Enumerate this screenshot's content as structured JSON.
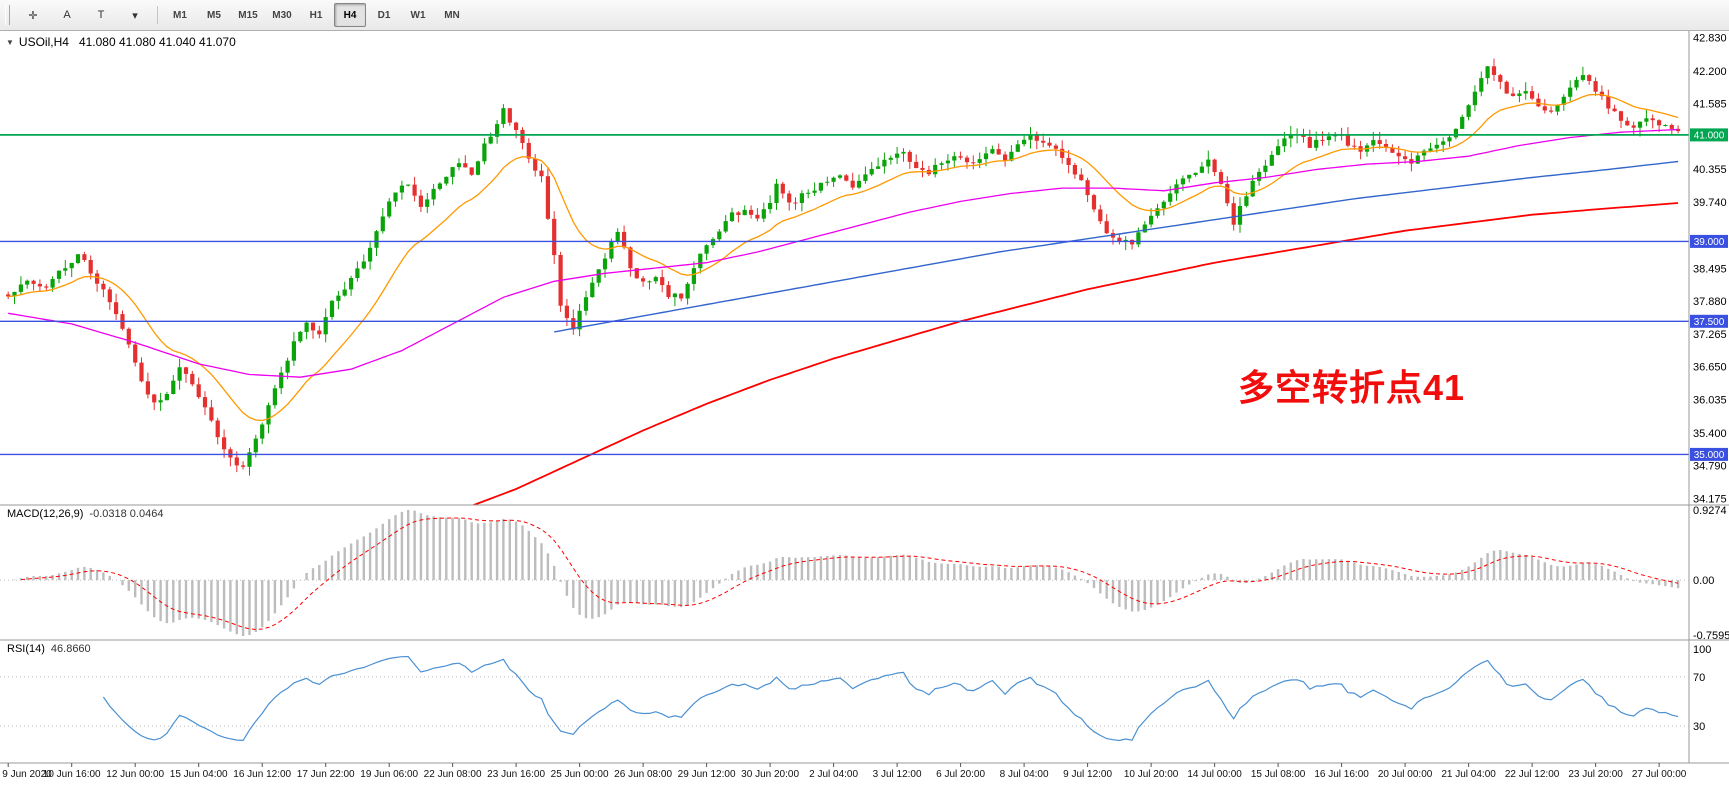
{
  "toolbar": {
    "left_buttons": [
      {
        "name": "cursor-tool-icon",
        "glyph": "✛"
      },
      {
        "name": "text-annotation-tool",
        "glyph": "A"
      },
      {
        "name": "text-label-tool",
        "glyph": "T"
      },
      {
        "name": "drawing-tools-dropdown-icon",
        "glyph": "▾"
      }
    ],
    "timeframes": [
      "M1",
      "M5",
      "M15",
      "M30",
      "H1",
      "H4",
      "D1",
      "W1",
      "MN"
    ],
    "active_timeframe": "H4"
  },
  "chart": {
    "collapse_glyph": "▼",
    "symbol_title": "USOil,H4",
    "ohlc_text": "41.080 41.080 41.040 41.070",
    "annotation": {
      "text": "多空转折点41"
    },
    "y_axis_labels": [
      "42.830",
      "42.200",
      "41.585",
      "40.355",
      "39.740",
      "38.495",
      "37.880",
      "37.265",
      "36.650",
      "36.035",
      "35.400",
      "34.790",
      "34.175"
    ],
    "price_tags": [
      {
        "label": "41.000",
        "price": 41.0,
        "color": "#00a651"
      },
      {
        "label": "39.000",
        "price": 39.0,
        "color": "#3a50e0"
      },
      {
        "label": "37.500",
        "price": 37.5,
        "color": "#3a50e0"
      },
      {
        "label": "35.000",
        "price": 35.0,
        "color": "#3a50e0"
      }
    ]
  },
  "macd": {
    "title": "MACD(12,26,9)",
    "values": "-0.0318 0.0464",
    "axis_labels": [
      "0.9274",
      "0.00",
      "-0.7595"
    ]
  },
  "rsi": {
    "title": "RSI(14)",
    "value": "46.8660",
    "axis_labels": [
      "100",
      "70",
      "30"
    ]
  },
  "colors": {
    "bull": "#0aa30a",
    "bear": "#e53030",
    "ma_orange": "#ff9900",
    "ma_magenta": "#ee00ee",
    "ma_blue": "#3366cc",
    "ma_red": "#ff0000",
    "hline_green": "#00a651",
    "hline_blue": "#3a50e0",
    "macd_hist": "#bdbdbd",
    "macd_signal": "#ff0000",
    "rsi_line": "#4a90d2",
    "annotation": "#f20d0d",
    "axis_text": "#000000",
    "grid_dotted": "#bbbbbb",
    "divider": "#9a9a9a"
  },
  "chart_data": {
    "type": "candlestick",
    "symbol": "USOil",
    "timeframe": "H4",
    "current_ohlc": {
      "open": 41.08,
      "high": 41.08,
      "low": 41.04,
      "close": 41.07
    },
    "n_candles": 264,
    "price_axis": {
      "ylim": [
        34.05,
        42.95
      ]
    },
    "horizontal_lines": [
      {
        "price": 41.0,
        "color": "#00a651"
      },
      {
        "price": 39.0,
        "color": "#3a50e0"
      },
      {
        "price": 37.5,
        "color": "#3a50e0"
      },
      {
        "price": 35.0,
        "color": "#3a50e0"
      }
    ],
    "close_path": [
      [
        0,
        37.95
      ],
      [
        3,
        38.25
      ],
      [
        6,
        38.1
      ],
      [
        9,
        38.55
      ],
      [
        11,
        38.75
      ],
      [
        13,
        38.45
      ],
      [
        16,
        37.85
      ],
      [
        19,
        37.1
      ],
      [
        21,
        36.35
      ],
      [
        23,
        35.95
      ],
      [
        25,
        36.1
      ],
      [
        27,
        36.65
      ],
      [
        29,
        36.35
      ],
      [
        31,
        35.85
      ],
      [
        33,
        35.35
      ],
      [
        35,
        34.95
      ],
      [
        37,
        34.72
      ],
      [
        39,
        35.3
      ],
      [
        41,
        35.9
      ],
      [
        43,
        36.5
      ],
      [
        45,
        37.1
      ],
      [
        47,
        37.45
      ],
      [
        49,
        37.3
      ],
      [
        51,
        37.85
      ],
      [
        53,
        38.15
      ],
      [
        55,
        38.45
      ],
      [
        57,
        38.9
      ],
      [
        59,
        39.5
      ],
      [
        61,
        39.95
      ],
      [
        63,
        40.1
      ],
      [
        65,
        39.7
      ],
      [
        67,
        39.95
      ],
      [
        69,
        40.2
      ],
      [
        71,
        40.5
      ],
      [
        73,
        40.3
      ],
      [
        75,
        40.8
      ],
      [
        77,
        41.2
      ],
      [
        78,
        41.45
      ],
      [
        80,
        41.1
      ],
      [
        82,
        40.5
      ],
      [
        84,
        40.25
      ],
      [
        86,
        38.7
      ],
      [
        87,
        37.75
      ],
      [
        89,
        37.4
      ],
      [
        91,
        38.0
      ],
      [
        93,
        38.45
      ],
      [
        95,
        39.0
      ],
      [
        96,
        39.2
      ],
      [
        98,
        38.5
      ],
      [
        100,
        38.2
      ],
      [
        102,
        38.35
      ],
      [
        104,
        38.0
      ],
      [
        106,
        37.95
      ],
      [
        108,
        38.55
      ],
      [
        110,
        38.9
      ],
      [
        112,
        39.2
      ],
      [
        114,
        39.5
      ],
      [
        116,
        39.55
      ],
      [
        118,
        39.4
      ],
      [
        120,
        39.75
      ],
      [
        121,
        40.05
      ],
      [
        123,
        39.7
      ],
      [
        125,
        39.85
      ],
      [
        127,
        40.0
      ],
      [
        129,
        40.1
      ],
      [
        131,
        40.25
      ],
      [
        133,
        40.05
      ],
      [
        135,
        40.3
      ],
      [
        137,
        40.45
      ],
      [
        139,
        40.55
      ],
      [
        141,
        40.65
      ],
      [
        143,
        40.4
      ],
      [
        145,
        40.3
      ],
      [
        147,
        40.5
      ],
      [
        149,
        40.6
      ],
      [
        151,
        40.45
      ],
      [
        153,
        40.55
      ],
      [
        155,
        40.7
      ],
      [
        157,
        40.5
      ],
      [
        159,
        40.8
      ],
      [
        161,
        41.0
      ],
      [
        163,
        40.85
      ],
      [
        165,
        40.7
      ],
      [
        167,
        40.4
      ],
      [
        169,
        40.15
      ],
      [
        171,
        39.6
      ],
      [
        173,
        39.15
      ],
      [
        175,
        39.0
      ],
      [
        177,
        38.95
      ],
      [
        179,
        39.3
      ],
      [
        181,
        39.65
      ],
      [
        183,
        39.9
      ],
      [
        185,
        40.15
      ],
      [
        187,
        40.3
      ],
      [
        189,
        40.5
      ],
      [
        191,
        40.1
      ],
      [
        193,
        39.35
      ],
      [
        195,
        39.9
      ],
      [
        197,
        40.3
      ],
      [
        199,
        40.6
      ],
      [
        201,
        40.9
      ],
      [
        203,
        41.05
      ],
      [
        205,
        40.8
      ],
      [
        207,
        40.95
      ],
      [
        209,
        41.05
      ],
      [
        211,
        40.85
      ],
      [
        213,
        40.7
      ],
      [
        215,
        40.9
      ],
      [
        217,
        40.75
      ],
      [
        219,
        40.6
      ],
      [
        221,
        40.5
      ],
      [
        223,
        40.65
      ],
      [
        225,
        40.8
      ],
      [
        227,
        41.0
      ],
      [
        229,
        41.3
      ],
      [
        231,
        41.85
      ],
      [
        233,
        42.25
      ],
      [
        235,
        41.95
      ],
      [
        237,
        41.7
      ],
      [
        239,
        41.85
      ],
      [
        241,
        41.55
      ],
      [
        243,
        41.45
      ],
      [
        245,
        41.7
      ],
      [
        247,
        42.0
      ],
      [
        248,
        42.15
      ],
      [
        250,
        41.85
      ],
      [
        252,
        41.55
      ],
      [
        254,
        41.3
      ],
      [
        256,
        41.15
      ],
      [
        258,
        41.3
      ],
      [
        260,
        41.2
      ],
      [
        263,
        41.07
      ]
    ],
    "moving_averages": {
      "orange_ema_period": 16,
      "magenta_path": [
        [
          0,
          37.65
        ],
        [
          10,
          37.45
        ],
        [
          20,
          37.1
        ],
        [
          30,
          36.7
        ],
        [
          38,
          36.5
        ],
        [
          46,
          36.45
        ],
        [
          54,
          36.6
        ],
        [
          62,
          36.95
        ],
        [
          70,
          37.45
        ],
        [
          78,
          37.95
        ],
        [
          86,
          38.25
        ],
        [
          94,
          38.4
        ],
        [
          102,
          38.5
        ],
        [
          110,
          38.6
        ],
        [
          118,
          38.8
        ],
        [
          126,
          39.05
        ],
        [
          134,
          39.3
        ],
        [
          142,
          39.55
        ],
        [
          150,
          39.75
        ],
        [
          158,
          39.9
        ],
        [
          166,
          40.0
        ],
        [
          174,
          40.0
        ],
        [
          182,
          39.95
        ],
        [
          190,
          40.1
        ],
        [
          198,
          40.2
        ],
        [
          206,
          40.35
        ],
        [
          214,
          40.45
        ],
        [
          222,
          40.5
        ],
        [
          230,
          40.6
        ],
        [
          238,
          40.8
        ],
        [
          246,
          40.95
        ],
        [
          254,
          41.05
        ],
        [
          263,
          41.1
        ]
      ],
      "blue_path": [
        [
          86,
          37.3
        ],
        [
          100,
          37.6
        ],
        [
          114,
          37.9
        ],
        [
          128,
          38.2
        ],
        [
          142,
          38.5
        ],
        [
          156,
          38.8
        ],
        [
          170,
          39.05
        ],
        [
          184,
          39.3
        ],
        [
          198,
          39.55
        ],
        [
          212,
          39.8
        ],
        [
          226,
          40.0
        ],
        [
          240,
          40.2
        ],
        [
          252,
          40.35
        ],
        [
          263,
          40.5
        ]
      ],
      "red_path": [
        [
          70,
          33.9
        ],
        [
          80,
          34.35
        ],
        [
          90,
          34.9
        ],
        [
          100,
          35.45
        ],
        [
          110,
          35.95
        ],
        [
          120,
          36.4
        ],
        [
          130,
          36.8
        ],
        [
          140,
          37.15
        ],
        [
          150,
          37.5
        ],
        [
          160,
          37.8
        ],
        [
          170,
          38.1
        ],
        [
          180,
          38.35
        ],
        [
          190,
          38.6
        ],
        [
          200,
          38.8
        ],
        [
          210,
          39.0
        ],
        [
          220,
          39.2
        ],
        [
          230,
          39.35
        ],
        [
          240,
          39.5
        ],
        [
          250,
          39.6
        ],
        [
          263,
          39.72
        ]
      ]
    },
    "macd": {
      "fast": 12,
      "slow": 26,
      "signal": 9,
      "display_main": -0.0318,
      "display_signal": 0.0464,
      "axis_max": 0.9274,
      "axis_min": -0.7595
    },
    "rsi": {
      "period": 14,
      "display_value": 46.866,
      "levels": [
        70,
        30
      ]
    },
    "x_labels": [
      {
        "text": "9 Jun 2020",
        "candle": 0
      },
      {
        "text": "10 Jun 16:00",
        "candle": 10
      },
      {
        "text": "12 Jun 00:00",
        "candle": 20
      },
      {
        "text": "15 Jun 04:00",
        "candle": 30
      },
      {
        "text": "16 Jun 12:00",
        "candle": 40
      },
      {
        "text": "17 Jun 22:00",
        "candle": 50
      },
      {
        "text": "19 Jun 06:00",
        "candle": 60
      },
      {
        "text": "22 Jun 08:00",
        "candle": 70
      },
      {
        "text": "23 Jun 16:00",
        "candle": 80
      },
      {
        "text": "25 Jun 00:00",
        "candle": 90
      },
      {
        "text": "26 Jun 08:00",
        "candle": 100
      },
      {
        "text": "29 Jun 12:00",
        "candle": 110
      },
      {
        "text": "30 Jun 20:00",
        "candle": 120
      },
      {
        "text": "2 Jul 04:00",
        "candle": 130
      },
      {
        "text": "3 Jul 12:00",
        "candle": 140
      },
      {
        "text": "6 Jul 20:00",
        "candle": 150
      },
      {
        "text": "8 Jul 04:00",
        "candle": 160
      },
      {
        "text": "9 Jul 12:00",
        "candle": 170
      },
      {
        "text": "10 Jul 20:00",
        "candle": 180
      },
      {
        "text": "14 Jul 00:00",
        "candle": 190
      },
      {
        "text": "15 Jul 08:00",
        "candle": 200
      },
      {
        "text": "16 Jul 16:00",
        "candle": 210
      },
      {
        "text": "20 Jul 00:00",
        "candle": 220
      },
      {
        "text": "21 Jul 04:00",
        "candle": 230
      },
      {
        "text": "22 Jul 12:00",
        "candle": 240
      },
      {
        "text": "23 Jul 20:00",
        "candle": 250
      },
      {
        "text": "27 Jul 00:00",
        "candle": 260
      }
    ]
  }
}
